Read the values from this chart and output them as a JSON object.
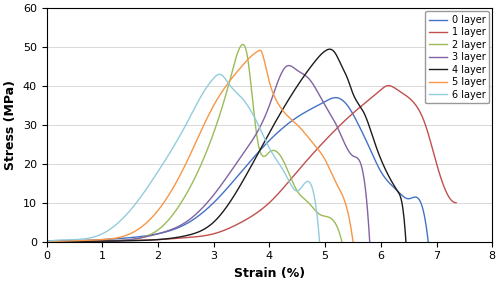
{
  "xlabel": "Strain (%)",
  "ylabel": "Stress (MPa)",
  "xlim": [
    0,
    8
  ],
  "ylim": [
    0,
    60
  ],
  "xticks": [
    0,
    1,
    2,
    3,
    4,
    5,
    6,
    7,
    8
  ],
  "yticks": [
    0,
    10,
    20,
    30,
    40,
    50,
    60
  ],
  "curves": [
    {
      "label": "0 layer",
      "color": "#4472C4",
      "pts": [
        [
          0,
          0
        ],
        [
          0.5,
          0.2
        ],
        [
          1.0,
          0.5
        ],
        [
          1.5,
          1.0
        ],
        [
          2.0,
          2.0
        ],
        [
          2.5,
          4.5
        ],
        [
          3.0,
          10
        ],
        [
          3.5,
          18
        ],
        [
          4.0,
          26
        ],
        [
          4.5,
          32
        ],
        [
          5.0,
          36
        ],
        [
          5.2,
          37
        ],
        [
          5.4,
          35
        ],
        [
          5.6,
          30
        ],
        [
          5.8,
          24
        ],
        [
          6.0,
          18
        ],
        [
          6.3,
          13
        ],
        [
          6.5,
          11
        ],
        [
          6.7,
          10.5
        ],
        [
          6.85,
          0
        ]
      ]
    },
    {
      "label": "1 layer",
      "color": "#C0504D",
      "pts": [
        [
          0,
          0
        ],
        [
          0.5,
          0.1
        ],
        [
          1.0,
          0.2
        ],
        [
          1.5,
          0.3
        ],
        [
          2.0,
          0.5
        ],
        [
          2.5,
          1.0
        ],
        [
          3.0,
          2.0
        ],
        [
          3.5,
          5
        ],
        [
          4.0,
          10
        ],
        [
          4.5,
          18
        ],
        [
          5.0,
          26
        ],
        [
          5.5,
          33
        ],
        [
          6.0,
          39
        ],
        [
          6.1,
          40
        ],
        [
          6.3,
          39
        ],
        [
          6.5,
          37
        ],
        [
          6.8,
          30
        ],
        [
          7.0,
          20
        ],
        [
          7.2,
          12
        ],
        [
          7.35,
          10
        ]
      ]
    },
    {
      "label": "2 layer",
      "color": "#9BBB59",
      "pts": [
        [
          0,
          0
        ],
        [
          1.0,
          0.1
        ],
        [
          1.5,
          0.5
        ],
        [
          2.0,
          3
        ],
        [
          2.5,
          12
        ],
        [
          3.0,
          28
        ],
        [
          3.3,
          42
        ],
        [
          3.5,
          50.5
        ],
        [
          3.6,
          48
        ],
        [
          3.7,
          36
        ],
        [
          3.8,
          25
        ],
        [
          4.0,
          23
        ],
        [
          4.2,
          22
        ],
        [
          4.5,
          13
        ],
        [
          4.7,
          10
        ],
        [
          4.9,
          7
        ],
        [
          5.1,
          6
        ],
        [
          5.3,
          0
        ]
      ]
    },
    {
      "label": "3 layer",
      "color": "#8064A2",
      "pts": [
        [
          0,
          0
        ],
        [
          1.0,
          0.1
        ],
        [
          1.5,
          0.5
        ],
        [
          2.0,
          2
        ],
        [
          2.5,
          5
        ],
        [
          3.0,
          12
        ],
        [
          3.5,
          22
        ],
        [
          4.0,
          35
        ],
        [
          4.3,
          45
        ],
        [
          4.5,
          44
        ],
        [
          4.7,
          42
        ],
        [
          5.0,
          35
        ],
        [
          5.2,
          30
        ],
        [
          5.5,
          22
        ],
        [
          5.7,
          16
        ],
        [
          5.8,
          0
        ]
      ]
    },
    {
      "label": "4 layer",
      "color": "#1C1C1C",
      "pts": [
        [
          0,
          0
        ],
        [
          1.0,
          0.1
        ],
        [
          1.5,
          0.2
        ],
        [
          2.0,
          0.5
        ],
        [
          2.5,
          1.5
        ],
        [
          3.0,
          5
        ],
        [
          3.5,
          15
        ],
        [
          4.0,
          28
        ],
        [
          4.5,
          40
        ],
        [
          4.8,
          46
        ],
        [
          5.0,
          49
        ],
        [
          5.15,
          49
        ],
        [
          5.2,
          48
        ],
        [
          5.3,
          45
        ],
        [
          5.4,
          42
        ],
        [
          5.5,
          38
        ],
        [
          5.7,
          33
        ],
        [
          5.9,
          25
        ],
        [
          6.1,
          18
        ],
        [
          6.3,
          13
        ],
        [
          6.4,
          8
        ],
        [
          6.45,
          0
        ]
      ]
    },
    {
      "label": "5 layer",
      "color": "#F79646",
      "pts": [
        [
          0,
          0
        ],
        [
          0.3,
          0.1
        ],
        [
          0.5,
          0.2
        ],
        [
          1.0,
          0.5
        ],
        [
          1.5,
          2
        ],
        [
          2.0,
          8
        ],
        [
          2.5,
          20
        ],
        [
          3.0,
          35
        ],
        [
          3.5,
          45
        ],
        [
          3.7,
          48
        ],
        [
          3.8,
          49
        ],
        [
          3.85,
          49
        ],
        [
          3.9,
          47
        ],
        [
          4.0,
          41
        ],
        [
          4.1,
          37
        ],
        [
          4.5,
          30
        ],
        [
          4.8,
          25
        ],
        [
          5.0,
          21
        ],
        [
          5.2,
          15
        ],
        [
          5.4,
          8
        ],
        [
          5.5,
          0
        ]
      ]
    },
    {
      "label": "6 layer",
      "color": "#92CDDC",
      "pts": [
        [
          0,
          0
        ],
        [
          0.5,
          0.5
        ],
        [
          1.0,
          2
        ],
        [
          1.5,
          8
        ],
        [
          2.0,
          18
        ],
        [
          2.5,
          30
        ],
        [
          2.8,
          38
        ],
        [
          3.0,
          42
        ],
        [
          3.1,
          43
        ],
        [
          3.2,
          42
        ],
        [
          3.3,
          40
        ],
        [
          3.5,
          37
        ],
        [
          3.8,
          30
        ],
        [
          4.0,
          24
        ],
        [
          4.3,
          17
        ],
        [
          4.5,
          13
        ],
        [
          4.8,
          12
        ],
        [
          4.9,
          0
        ]
      ]
    }
  ]
}
